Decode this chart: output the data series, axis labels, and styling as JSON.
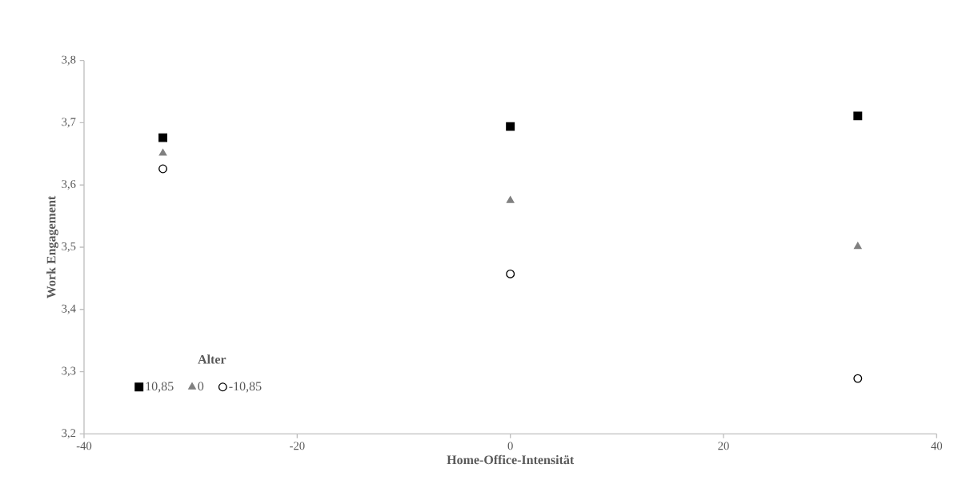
{
  "chart_data": {
    "type": "scatter",
    "xlabel": "Home-Office-Intensität",
    "ylabel": "Work Engagement",
    "legend_title": "Alter",
    "x": [
      -32.6,
      0,
      32.6
    ],
    "series": [
      {
        "name": "10,85",
        "color": "#000000",
        "marker": "square",
        "values": [
          3.676,
          3.694,
          3.711
        ]
      },
      {
        "name": "0",
        "color": "#808080",
        "marker": "triangle",
        "values": [
          3.651,
          3.575,
          3.501
        ]
      },
      {
        "name": "-10,85",
        "color": "#000000",
        "marker": "circle",
        "values": [
          3.626,
          3.457,
          3.289
        ]
      }
    ],
    "xlim": [
      -40,
      40
    ],
    "xticks": [
      -40,
      -20,
      0,
      20,
      40
    ],
    "ylim": [
      3.2,
      3.8
    ],
    "yticks": [
      {
        "value": 3.2,
        "label": "3,2"
      },
      {
        "value": 3.3,
        "label": "3,3"
      },
      {
        "value": 3.4,
        "label": "3,4"
      },
      {
        "value": 3.5,
        "label": "3,5"
      },
      {
        "value": 3.6,
        "label": "3,6"
      },
      {
        "value": 3.7,
        "label": "3,7"
      },
      {
        "value": 3.8,
        "label": "3,8"
      }
    ],
    "grid": false,
    "legend": "bottom left"
  }
}
